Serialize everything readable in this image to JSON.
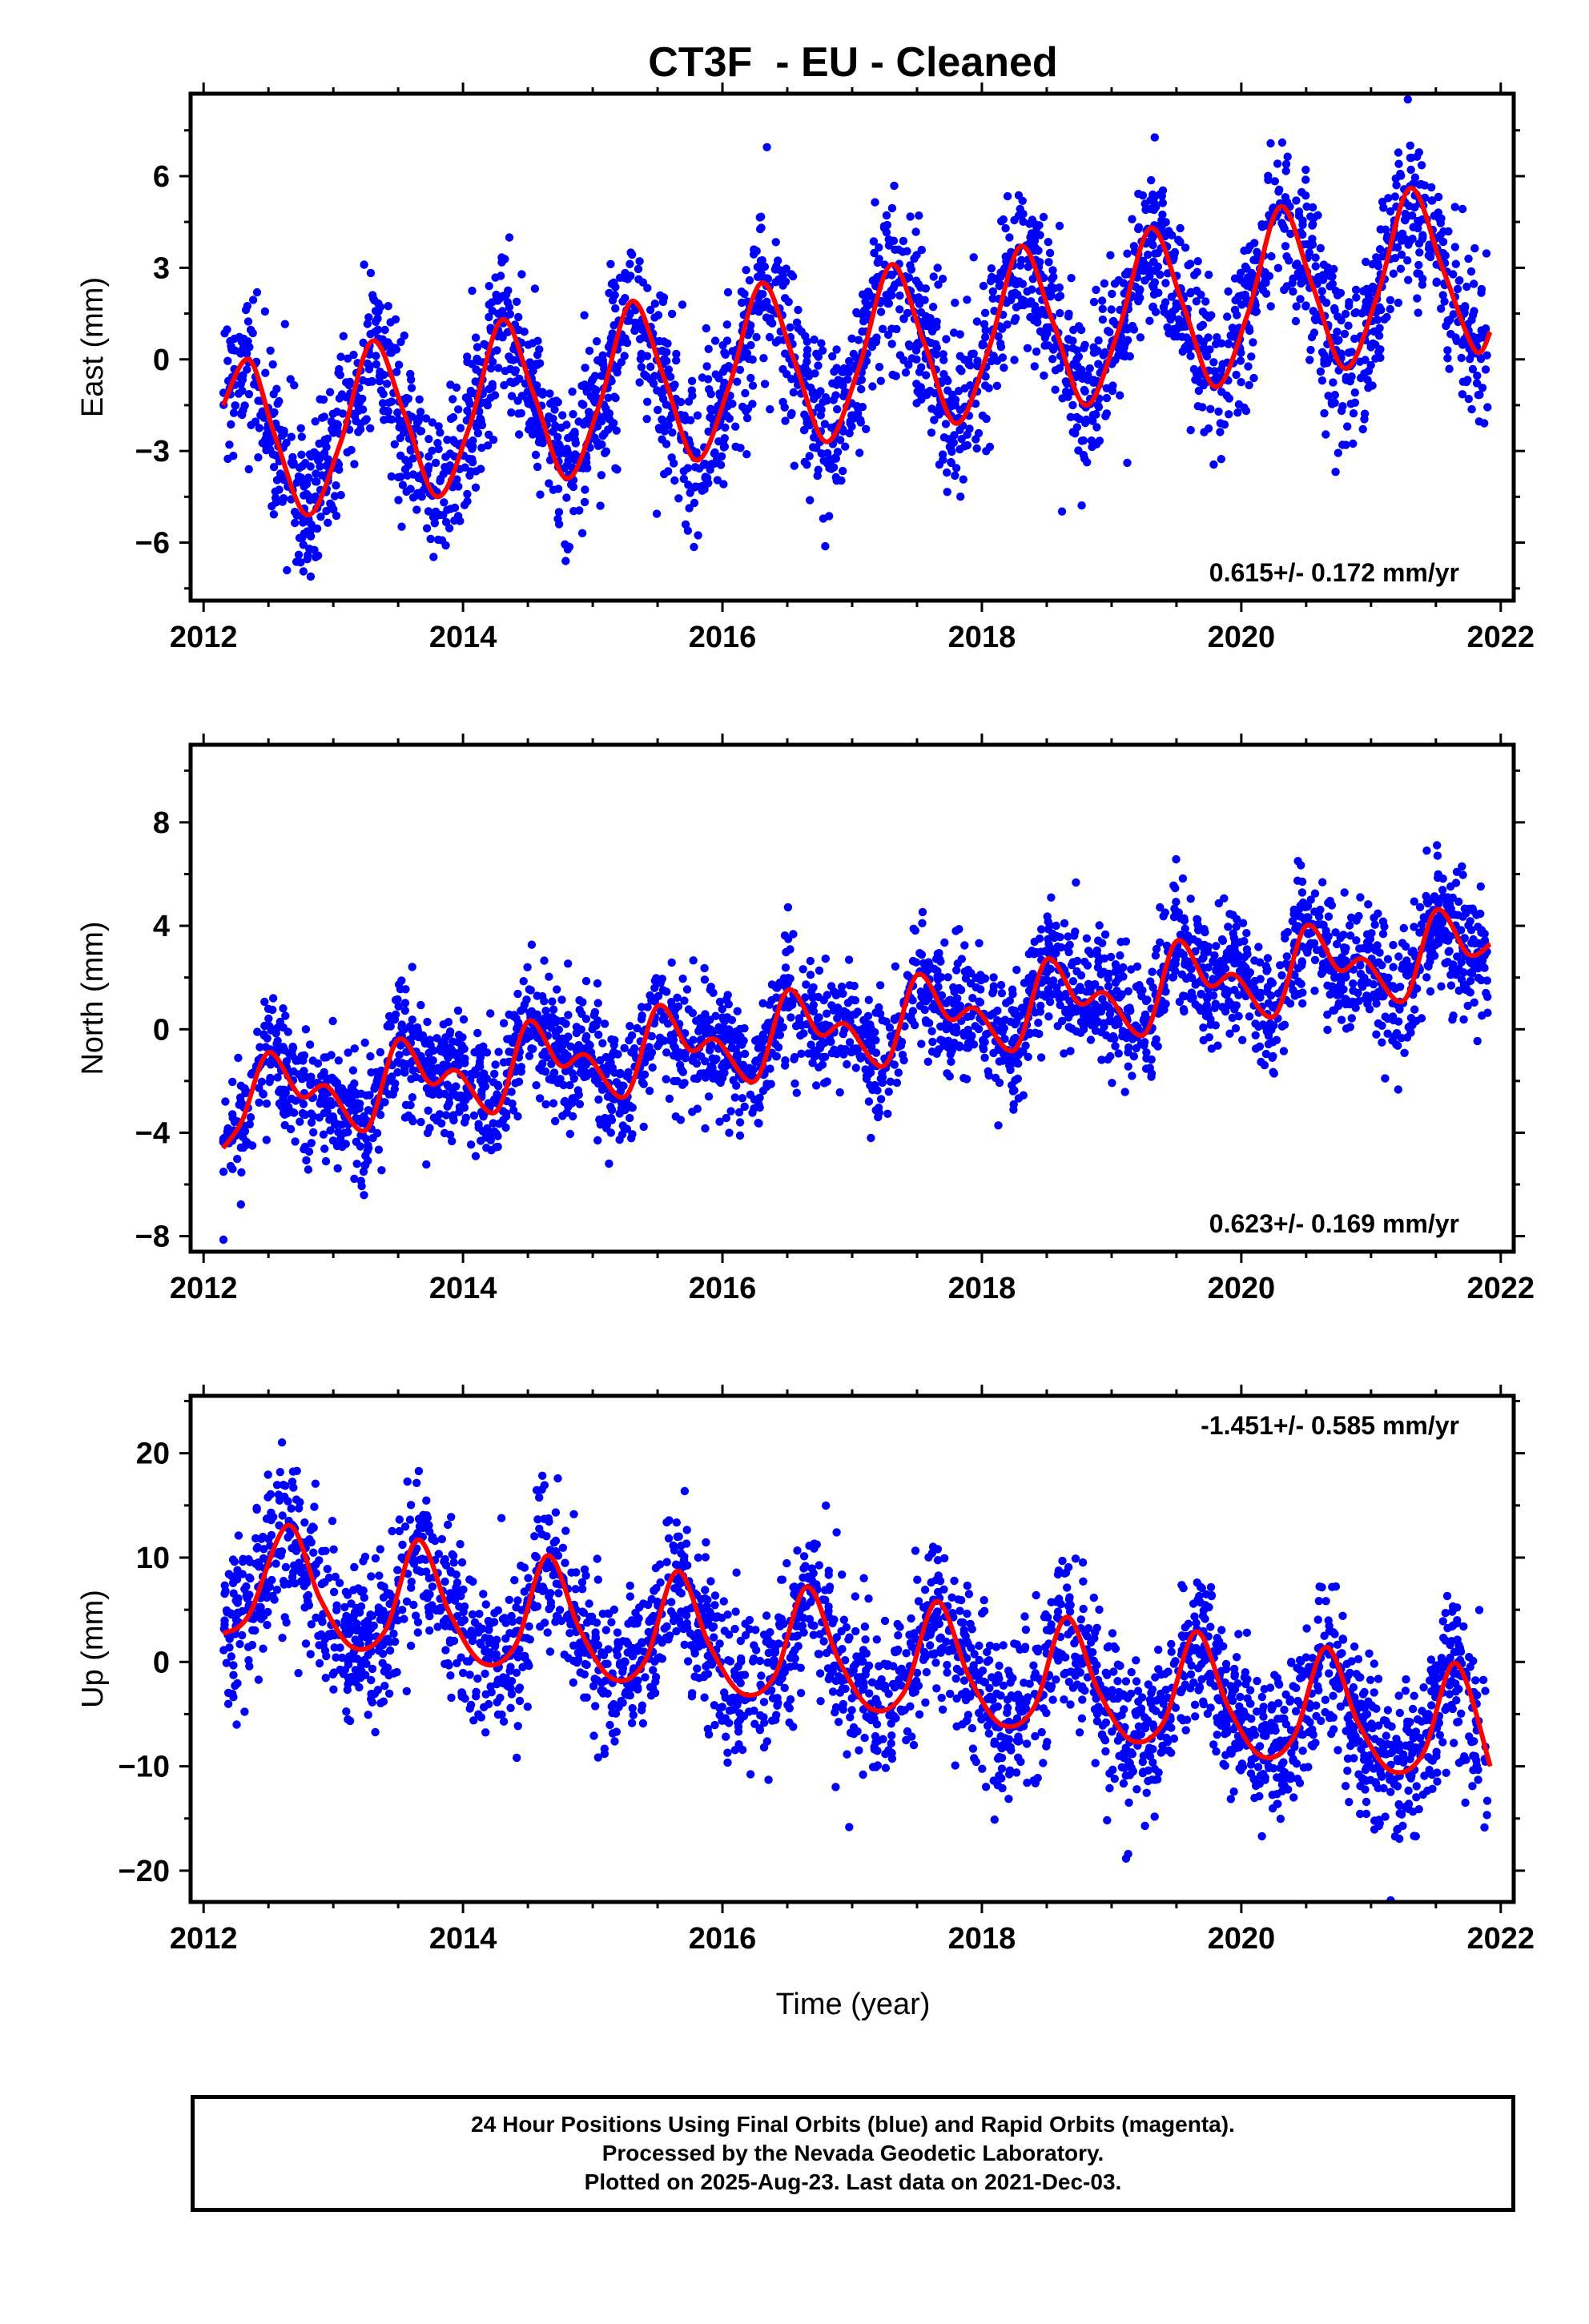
{
  "title": "CT3F  - EU - Cleaned",
  "colors": {
    "points": "#0000ff",
    "fit": "#ff0000",
    "axes": "#000000"
  },
  "xlabel": "Time (year)",
  "footer": [
    "24 Hour Positions Using Final Orbits (blue) and Rapid Orbits (magenta).",
    "Processed by the Nevada Geodetic Laboratory.",
    "Plotted on 2025-Aug-23. Last data on 2021-Dec-03."
  ],
  "chart_data": [
    {
      "type": "scatter",
      "panel": "east",
      "ylabel": "East (mm)",
      "xlim": [
        2011.9,
        2022.1
      ],
      "ylim": [
        -7.9,
        8.7
      ],
      "xticks": [
        2012,
        2014,
        2016,
        2018,
        2020,
        2022
      ],
      "yticks": [
        -6,
        -3,
        0,
        3,
        6
      ],
      "ytick_labels": [
        "−6",
        "−3",
        "0",
        "3",
        "6"
      ],
      "rate_label": "0.615+/- 0.172 mm/yr",
      "rate_position": "bottom-right",
      "fit": {
        "x": [
          2012.15,
          2012.35,
          2012.55,
          2012.8,
          2013.05,
          2013.3,
          2013.55,
          2013.8,
          2014.05,
          2014.3,
          2014.55,
          2014.8,
          2015.05,
          2015.3,
          2015.55,
          2015.8,
          2016.05,
          2016.3,
          2016.55,
          2016.8,
          2017.05,
          2017.3,
          2017.55,
          2017.8,
          2018.05,
          2018.3,
          2018.55,
          2018.8,
          2019.05,
          2019.3,
          2019.55,
          2019.8,
          2020.05,
          2020.3,
          2020.55,
          2020.8,
          2021.05,
          2021.3,
          2021.55,
          2021.8,
          2021.92
        ],
        "y": [
          -1.5,
          0.0,
          -2.5,
          -5.1,
          -2.8,
          0.6,
          -1.8,
          -4.5,
          -2.2,
          1.3,
          -1.2,
          -3.9,
          -1.5,
          1.9,
          -0.6,
          -3.3,
          -0.9,
          2.5,
          0.0,
          -2.7,
          -0.3,
          3.1,
          0.6,
          -2.1,
          0.3,
          3.7,
          1.2,
          -1.5,
          0.9,
          4.3,
          1.8,
          -0.9,
          1.5,
          5.0,
          2.4,
          -0.3,
          2.1,
          5.6,
          3.0,
          0.3,
          0.9
        ]
      },
      "point_model": {
        "n": 2900,
        "noise_sd_mm": 1.3,
        "x_range": [
          2012.15,
          2021.9
        ]
      }
    },
    {
      "type": "scatter",
      "panel": "north",
      "ylabel": "North (mm)",
      "xlim": [
        2011.9,
        2022.1
      ],
      "ylim": [
        -8.6,
        11.0
      ],
      "xticks": [
        2012,
        2014,
        2016,
        2018,
        2020,
        2022
      ],
      "yticks": [
        -8,
        -4,
        0,
        4,
        8
      ],
      "ytick_labels": [
        "−8",
        "−4",
        "0",
        "4",
        "8"
      ],
      "rate_label": "0.623+/- 0.169 mm/yr",
      "rate_position": "bottom-right",
      "fit": {
        "x": [
          2012.15,
          2012.3,
          2012.5,
          2012.75,
          2012.95,
          2013.25,
          2013.5,
          2013.75,
          2013.95,
          2014.25,
          2014.5,
          2014.75,
          2014.95,
          2015.25,
          2015.5,
          2015.75,
          2015.95,
          2016.25,
          2016.5,
          2016.75,
          2016.95,
          2017.25,
          2017.5,
          2017.75,
          2017.95,
          2018.25,
          2018.5,
          2018.75,
          2018.95,
          2019.25,
          2019.5,
          2019.75,
          2019.95,
          2020.25,
          2020.5,
          2020.75,
          2020.95,
          2021.25,
          2021.5,
          2021.75,
          2021.92
        ],
        "y": [
          -4.6,
          -3.5,
          -0.9,
          -2.6,
          -2.2,
          -3.9,
          -0.4,
          -2.1,
          -1.6,
          -3.2,
          0.3,
          -1.4,
          -1.0,
          -2.6,
          0.9,
          -0.8,
          -0.4,
          -2.0,
          1.5,
          -0.2,
          0.2,
          -1.4,
          2.1,
          0.4,
          0.8,
          -0.8,
          2.7,
          1.0,
          1.4,
          -0.2,
          3.4,
          1.7,
          2.1,
          0.5,
          4.0,
          2.3,
          2.7,
          1.1,
          4.6,
          2.9,
          3.3
        ]
      },
      "point_model": {
        "n": 2900,
        "noise_sd_mm": 1.2,
        "x_range": [
          2012.15,
          2021.9
        ]
      }
    },
    {
      "type": "scatter",
      "panel": "up",
      "ylabel": "Up (mm)",
      "xlim": [
        2011.9,
        2022.1
      ],
      "ylim": [
        -23.0,
        25.5
      ],
      "xticks": [
        2012,
        2014,
        2016,
        2018,
        2020,
        2022
      ],
      "yticks": [
        -20,
        -10,
        0,
        10,
        20
      ],
      "ytick_labels": [
        "−20",
        "−10",
        "0",
        "10",
        "20"
      ],
      "rate_label": "-1.451+/- 0.585 mm/yr",
      "rate_position": "top-right",
      "fit": {
        "x": [
          2012.15,
          2012.35,
          2012.65,
          2012.9,
          2013.15,
          2013.4,
          2013.65,
          2013.9,
          2014.15,
          2014.4,
          2014.65,
          2014.9,
          2015.15,
          2015.4,
          2015.65,
          2015.9,
          2016.15,
          2016.4,
          2016.65,
          2016.9,
          2017.15,
          2017.4,
          2017.65,
          2017.9,
          2018.15,
          2018.4,
          2018.65,
          2018.9,
          2019.15,
          2019.4,
          2019.65,
          2019.9,
          2020.15,
          2020.4,
          2020.65,
          2020.9,
          2021.15,
          2021.4,
          2021.65,
          2021.92
        ],
        "y": [
          2.7,
          4.5,
          13.1,
          6.0,
          1.4,
          3.0,
          11.7,
          4.6,
          -0.1,
          1.5,
          10.2,
          3.1,
          -1.6,
          0.0,
          8.7,
          1.6,
          -3.0,
          -1.4,
          7.2,
          0.1,
          -4.5,
          -2.9,
          5.8,
          -1.4,
          -6.0,
          -4.4,
          4.3,
          -2.8,
          -7.5,
          -5.8,
          2.9,
          -4.3,
          -9.0,
          -7.3,
          1.4,
          -5.8,
          -10.4,
          -8.8,
          -0.1,
          -10.0
        ]
      },
      "point_model": {
        "n": 2900,
        "noise_sd_mm": 3.8,
        "x_range": [
          2012.15,
          2021.9
        ]
      }
    }
  ]
}
